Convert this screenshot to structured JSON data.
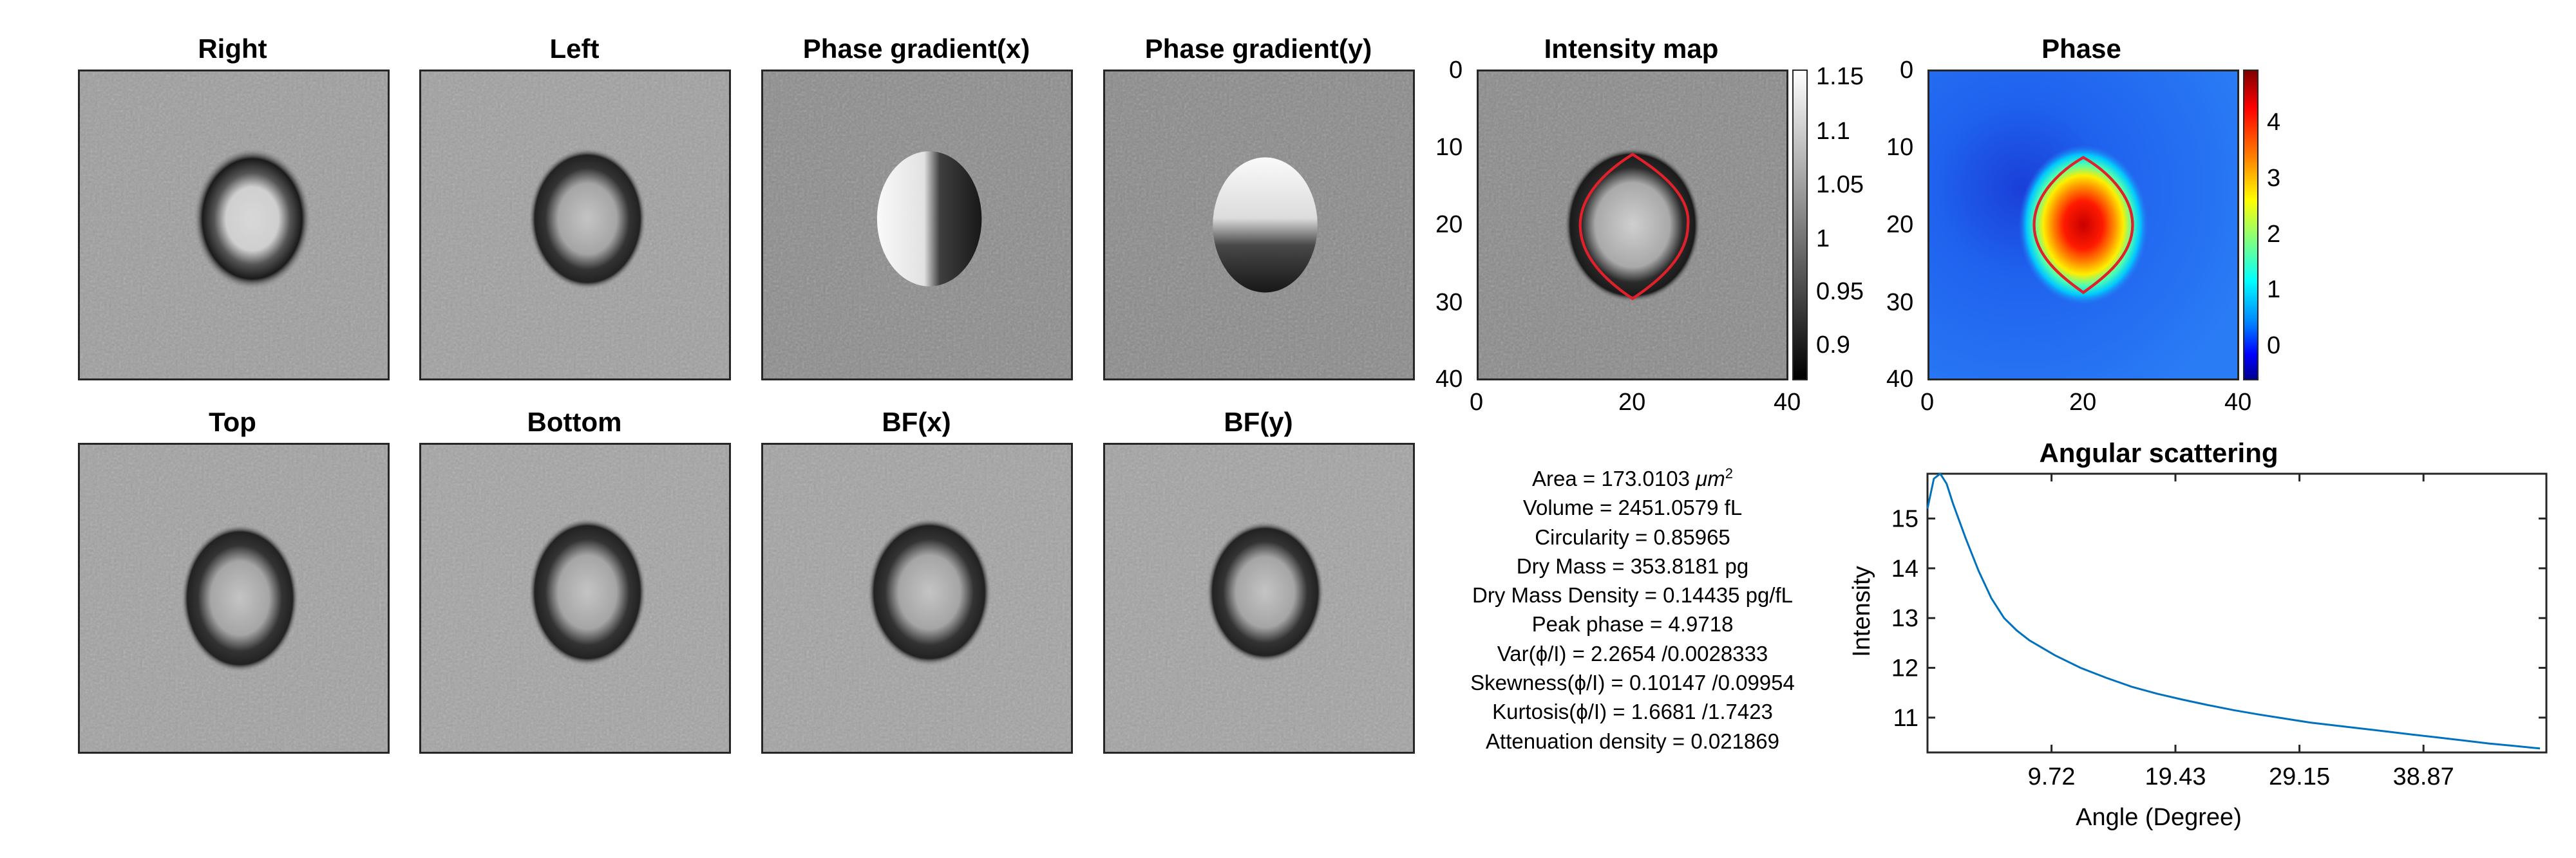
{
  "panels": {
    "right": "Right",
    "left": "Left",
    "phase_grad_x": "Phase gradient(x)",
    "phase_grad_y": "Phase gradient(y)",
    "intensity_map": "Intensity map",
    "phase": "Phase",
    "top": "Top",
    "bottom": "Bottom",
    "bf_x": "BF(x)",
    "bf_y": "BF(y)"
  },
  "intensity_map": {
    "x_ticks": [
      "0",
      "20",
      "40"
    ],
    "y_ticks": [
      "0",
      "10",
      "20",
      "30",
      "40"
    ],
    "colorbar_ticks": [
      "1.15",
      "1.1",
      "1.05",
      "1",
      "0.95",
      "0.9"
    ],
    "contour_color": "#e0202a"
  },
  "phase_map": {
    "x_ticks": [
      "0",
      "20",
      "40"
    ],
    "y_ticks": [
      "0",
      "10",
      "20",
      "30",
      "40"
    ],
    "colorbar_ticks": [
      "4",
      "3",
      "2",
      "1",
      "0"
    ],
    "colormap": "jet",
    "contour_color": "#e0202a"
  },
  "metrics": {
    "area_prefix": "Area = 173.0103 ",
    "area_unit": "μm",
    "area_exp": "2",
    "volume": "Volume = 2451.0579 fL",
    "circularity": "Circularity = 0.85965",
    "dry_mass": "Dry Mass = 353.8181 pg",
    "dry_mass_density": "Dry Mass Density = 0.14435 pg/fL",
    "peak_phase": "Peak phase = 4.9718",
    "var": "Var(ϕ/I) = 2.2654 /0.0028333",
    "skewness": "Skewness(ϕ/I) = 0.10147 /0.09954",
    "kurtosis": "Kurtosis(ϕ/I) = 1.6681 /1.7423",
    "attenuation": "Attenuation density = 0.021869"
  },
  "chart_data": {
    "type": "line",
    "title": "Angular scattering",
    "xlabel": "Angle (Degree)",
    "ylabel": "Intensity",
    "xlim": [
      0,
      48.5
    ],
    "ylim": [
      10.3,
      15.9
    ],
    "x_tick_labels": [
      "9.72",
      "19.43",
      "29.15",
      "38.87"
    ],
    "x_tick_values": [
      9.72,
      19.43,
      29.15,
      38.87
    ],
    "y_ticks": [
      11,
      12,
      13,
      14,
      15
    ],
    "grid": false,
    "line_color": "#0072bd",
    "series": [
      {
        "x": [
          0,
          0.5,
          1.0,
          1.5,
          2.0,
          3.0,
          4.0,
          5.0,
          6.0,
          7.0,
          8.0,
          9.0,
          10.0,
          12.0,
          14.0,
          16.0,
          18.0,
          20.0,
          22.0,
          24.0,
          26.0,
          28.0,
          30.0,
          32.0,
          34.0,
          36.0,
          38.0,
          40.0,
          42.0,
          44.0,
          46.0,
          48.0
        ],
        "y": [
          15.2,
          15.8,
          15.9,
          15.7,
          15.3,
          14.6,
          13.95,
          13.4,
          13.0,
          12.75,
          12.55,
          12.4,
          12.25,
          12.0,
          11.8,
          11.62,
          11.48,
          11.36,
          11.25,
          11.15,
          11.06,
          10.98,
          10.9,
          10.84,
          10.78,
          10.72,
          10.66,
          10.6,
          10.54,
          10.48,
          10.43,
          10.38
        ]
      }
    ]
  }
}
